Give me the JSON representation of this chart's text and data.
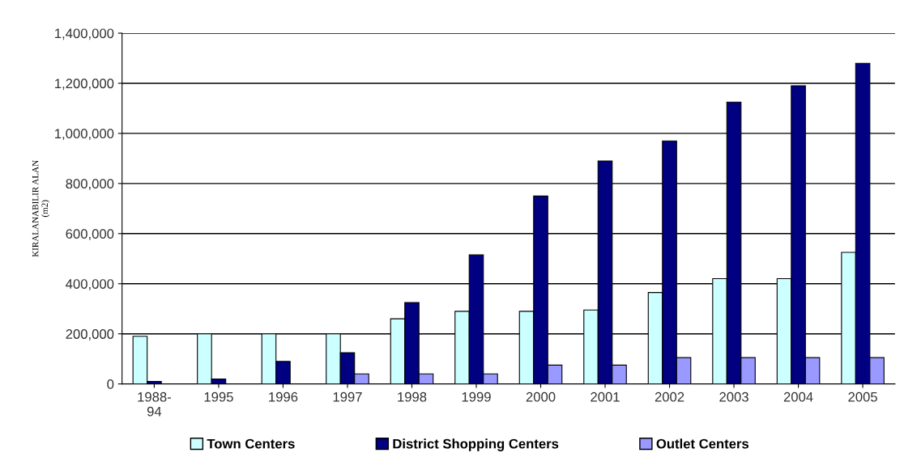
{
  "chart_data": {
    "type": "bar",
    "ylabel": "KIRALANABILIR ALAN\n(m2)",
    "categories": [
      "1988-\n94",
      "1995",
      "1996",
      "1997",
      "1998",
      "1999",
      "2000",
      "2001",
      "2002",
      "2003",
      "2004",
      "2005"
    ],
    "series": [
      {
        "name": "Town Centers",
        "color": "#ccffff",
        "values": [
          190000,
          200000,
          200000,
          200000,
          260000,
          290000,
          290000,
          295000,
          365000,
          420000,
          420000,
          525000
        ]
      },
      {
        "name": "District Shopping Centers",
        "color": "#000080",
        "values": [
          10000,
          20000,
          90000,
          125000,
          325000,
          515000,
          750000,
          890000,
          970000,
          1125000,
          1190000,
          1280000
        ]
      },
      {
        "name": "Outlet Centers",
        "color": "#9999ff",
        "values": [
          null,
          null,
          null,
          40000,
          40000,
          40000,
          75000,
          75000,
          105000,
          105000,
          105000,
          105000
        ]
      }
    ],
    "ylim": [
      0,
      1400000
    ],
    "yticks": [
      {
        "value": 0,
        "label": "0"
      },
      {
        "value": 200000,
        "label": "200,000"
      },
      {
        "value": 400000,
        "label": "400,000"
      },
      {
        "value": 600000,
        "label": "600,000"
      },
      {
        "value": 800000,
        "label": "800,000"
      },
      {
        "value": 1000000,
        "label": "1,000,000"
      },
      {
        "value": 1200000,
        "label": "1,200,000"
      },
      {
        "value": 1400000,
        "label": "1,400,000"
      }
    ],
    "grid": "y",
    "legend": "bottom"
  }
}
